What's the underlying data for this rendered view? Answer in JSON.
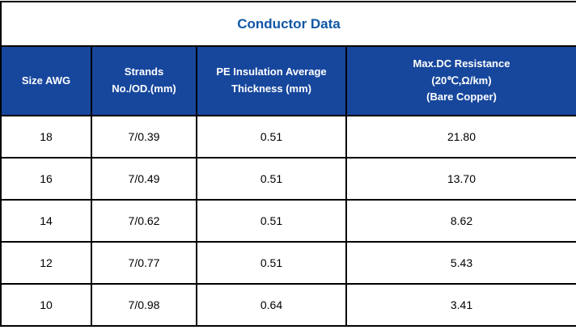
{
  "colors": {
    "background": "#FFFFFF",
    "header_bg": "#17479D",
    "title_text": "#1057A5",
    "border": "#000000",
    "header_text": "#FFFFFF",
    "cell_text": "#000000"
  },
  "table": {
    "title": "Conductor Data",
    "headers": [
      "Size AWG",
      "Strands\nNo./OD.(mm)",
      "PE Insulation Average\nThickness (mm)",
      "Max.DC Resistance\n(20℃,Ω/km)\n(Bare Copper)"
    ],
    "rows": [
      [
        "18",
        "7/0.39",
        "0.51",
        "21.80"
      ],
      [
        "16",
        "7/0.49",
        "0.51",
        "13.70"
      ],
      [
        "14",
        "7/0.62",
        "0.51",
        "8.62"
      ],
      [
        "12",
        "7/0.77",
        "0.51",
        "5.43"
      ],
      [
        "10",
        "7/0.98",
        "0.64",
        "3.41"
      ]
    ]
  }
}
